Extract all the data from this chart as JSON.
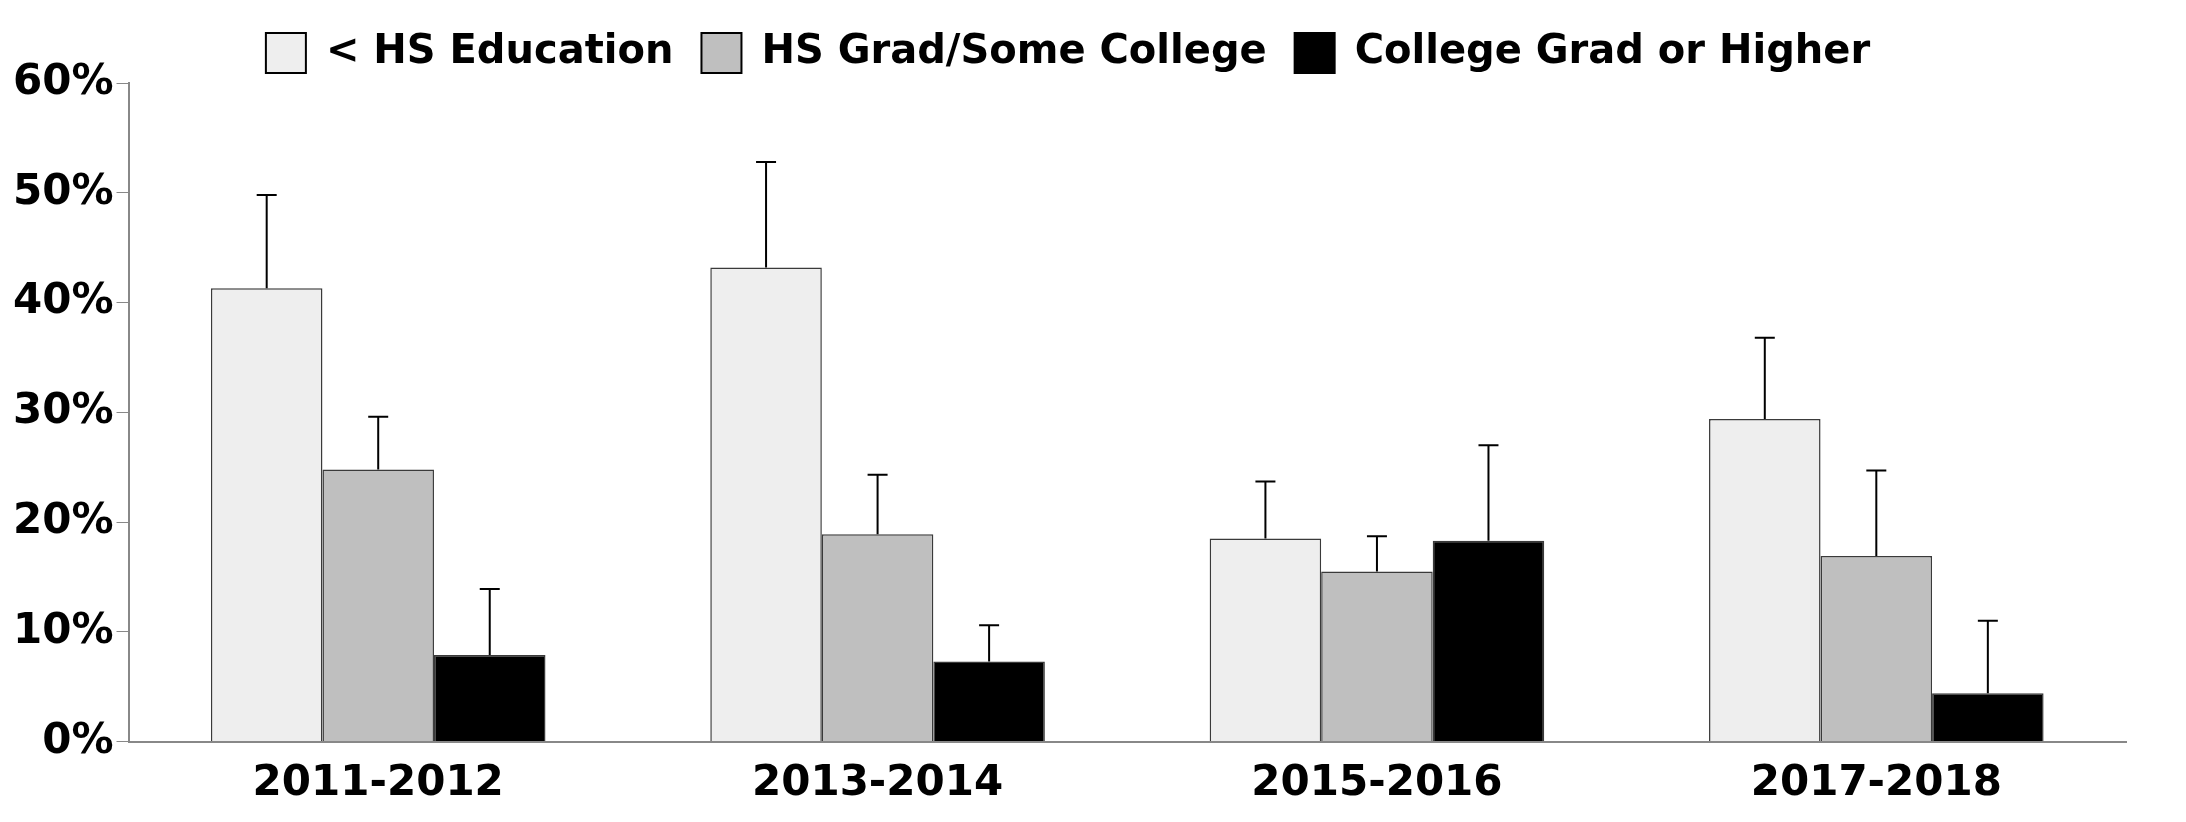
{
  "chart_data": {
    "type": "bar",
    "categories": [
      "2011-2012",
      "2013-2014",
      "2015-2016",
      "2017-2018"
    ],
    "series": [
      {
        "name": "< HS Education",
        "color": "#eeeeee",
        "values": [
          41.3,
          43.2,
          18.5,
          29.4
        ],
        "errors": [
          [
            41.3,
            49.8
          ],
          [
            43.2,
            52.8
          ],
          [
            18.5,
            23.7
          ],
          [
            29.4,
            36.8
          ]
        ]
      },
      {
        "name": "HS Grad/Some College",
        "color": "#bfbfbf",
        "values": [
          24.8,
          18.9,
          15.5,
          16.9
        ],
        "errors": [
          [
            24.8,
            29.6
          ],
          [
            18.9,
            24.3
          ],
          [
            15.5,
            18.7
          ],
          [
            16.9,
            24.7
          ]
        ]
      },
      {
        "name": "College Grad or Higher",
        "color": "#000000",
        "values": [
          7.9,
          7.3,
          18.3,
          4.4
        ],
        "errors": [
          [
            7.9,
            13.9
          ],
          [
            7.3,
            10.6
          ],
          [
            18.3,
            27.0
          ],
          [
            4.4,
            11.0
          ]
        ]
      }
    ],
    "ylim": [
      0,
      60
    ],
    "yticks": [
      {
        "value": 0,
        "label": "0%"
      },
      {
        "value": 10,
        "label": "10%"
      },
      {
        "value": 20,
        "label": "20%"
      },
      {
        "value": 30,
        "label": "30%"
      },
      {
        "value": 40,
        "label": "40%"
      },
      {
        "value": 50,
        "label": "50%"
      },
      {
        "value": 60,
        "label": "60%"
      }
    ],
    "grid": false,
    "legend": "top"
  }
}
